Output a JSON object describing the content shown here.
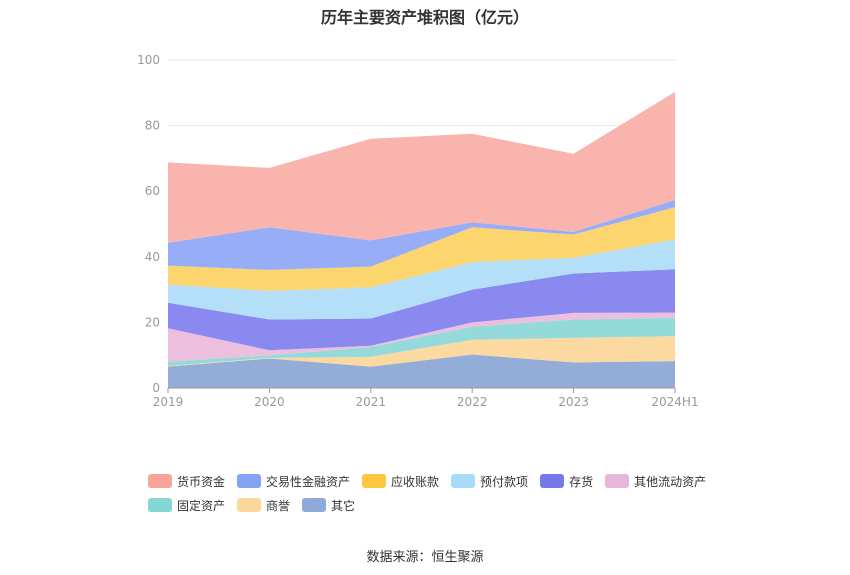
{
  "title": "历年主要资产堆积图（亿元）",
  "source_note": "数据来源：恒生聚源",
  "chart_data": {
    "type": "area",
    "stacked": true,
    "categories": [
      "2019",
      "2020",
      "2021",
      "2022",
      "2023",
      "2024H1"
    ],
    "ylim": [
      0,
      100
    ],
    "yticks": [
      0,
      20,
      40,
      60,
      80,
      100
    ],
    "grid": true,
    "legend_position": "bottom",
    "series": [
      {
        "name": "其它",
        "color": "#93acd8",
        "values": [
          6.5,
          9.0,
          6.5,
          10.2,
          7.8,
          8.2
        ]
      },
      {
        "name": "商誉",
        "color": "#fcd9a0",
        "values": [
          0.2,
          0.2,
          3.0,
          4.5,
          7.5,
          7.6
        ]
      },
      {
        "name": "固定资产",
        "color": "#94dada",
        "values": [
          1.3,
          0.8,
          3.0,
          4.0,
          5.6,
          5.6
        ]
      },
      {
        "name": "其他流动资产",
        "color": "#edbfdf",
        "values": [
          10.2,
          1.5,
          0.4,
          1.3,
          2.0,
          1.6
        ]
      },
      {
        "name": "存货",
        "color": "#8989f0",
        "values": [
          7.8,
          9.4,
          8.3,
          10.0,
          12.0,
          13.2
        ]
      },
      {
        "name": "预付款项",
        "color": "#b3e0f8",
        "values": [
          5.5,
          8.7,
          9.5,
          8.4,
          4.8,
          9.1
        ]
      },
      {
        "name": "应收账款",
        "color": "#fdd56e",
        "values": [
          5.8,
          6.4,
          6.3,
          10.6,
          7.1,
          9.8
        ]
      },
      {
        "name": "交易性金融资产",
        "color": "#98adf7",
        "values": [
          7.0,
          13.0,
          8.0,
          1.5,
          0.8,
          2.2
        ]
      },
      {
        "name": "货币资金",
        "color": "#f9b4ae",
        "values": [
          24.5,
          18.1,
          31.0,
          27.0,
          23.8,
          33.0
        ]
      }
    ],
    "legend_order": [
      "货币资金",
      "交易性金融资产",
      "应收账款",
      "预付款项",
      "存货",
      "其他流动资产",
      "固定资产",
      "商誉",
      "其它"
    ]
  },
  "legend_colors": {
    "货币资金": "#f8a49c",
    "交易性金融资产": "#84a3f5",
    "应收账款": "#fcc63e",
    "预付款项": "#a6dcf7",
    "存货": "#7777ec",
    "其他流动资产": "#e7b6dc",
    "固定资产": "#86d6d6",
    "商誉": "#fbd79c",
    "其它": "#8eaad8"
  }
}
